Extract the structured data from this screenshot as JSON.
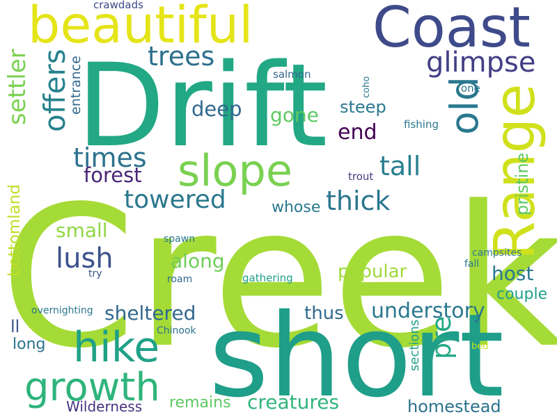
{
  "words": [
    {
      "text": "Creek",
      "color": "#a5db36"
    },
    {
      "text": "short",
      "color": "#1f9e89"
    },
    {
      "text": "Drift",
      "color": "#22a884"
    },
    {
      "text": "Coast",
      "color": "#3e4a89"
    },
    {
      "text": "beautiful",
      "color": "#e5e419"
    },
    {
      "text": "Range",
      "color": "#d0e11c"
    },
    {
      "text": "slope",
      "color": "#7ad151"
    },
    {
      "text": "hike",
      "color": "#1fa187"
    },
    {
      "text": "growth",
      "color": "#2fb47c"
    },
    {
      "text": "old",
      "color": "#2a788e"
    },
    {
      "text": "offers",
      "color": "#26828e"
    },
    {
      "text": "settler",
      "color": "#7ad151"
    },
    {
      "text": "glimpse",
      "color": "#433e85"
    },
    {
      "text": "trees",
      "color": "#2d708e"
    },
    {
      "text": "times",
      "color": "#2c728e"
    },
    {
      "text": "tall",
      "color": "#277f8e"
    },
    {
      "text": "towered",
      "color": "#2a788e"
    },
    {
      "text": "thick",
      "color": "#2a768e"
    },
    {
      "text": "lush",
      "color": "#3b528b"
    },
    {
      "text": "forest",
      "color": "#482677"
    },
    {
      "text": "deep",
      "color": "#31688e"
    },
    {
      "text": "end",
      "color": "#440154"
    },
    {
      "text": "gone",
      "color": "#5ec962"
    },
    {
      "text": "steep",
      "color": "#2a788e"
    },
    {
      "text": "pristine",
      "color": "#5ec962"
    },
    {
      "text": "pre",
      "color": "#22a884"
    },
    {
      "text": "sheltered",
      "color": "#31688e"
    },
    {
      "text": "understory",
      "color": "#2a788e"
    },
    {
      "text": "along",
      "color": "#6ece58"
    },
    {
      "text": "small",
      "color": "#90d743"
    },
    {
      "text": "host",
      "color": "#2a788e"
    },
    {
      "text": "bottomland",
      "color": "#bddf26"
    },
    {
      "text": "popular",
      "color": "#a0da39"
    },
    {
      "text": "whose",
      "color": "#2a788e"
    },
    {
      "text": "thus",
      "color": "#31688e"
    },
    {
      "text": "couple",
      "color": "#1f9e89"
    },
    {
      "text": "creatures",
      "color": "#2fb47c"
    },
    {
      "text": "homestead",
      "color": "#2c728e"
    },
    {
      "text": "remains",
      "color": "#5ec962"
    },
    {
      "text": "long",
      "color": "#2c728e"
    },
    {
      "text": "ll",
      "color": "#3b528b"
    },
    {
      "text": "Wilderness",
      "color": "#46327e"
    },
    {
      "text": "sections",
      "color": "#1fa187"
    },
    {
      "text": "entrance",
      "color": "#31688e"
    },
    {
      "text": "crawdads",
      "color": "#3e4a89"
    },
    {
      "text": "salmon",
      "color": "#31688e"
    },
    {
      "text": "coho",
      "color": "#2a788e"
    },
    {
      "text": "one",
      "color": "#2c728e"
    },
    {
      "text": "fishing",
      "color": "#2a788e"
    },
    {
      "text": "trout",
      "color": "#433e85"
    },
    {
      "text": "spawn",
      "color": "#2a788e"
    },
    {
      "text": "campsites",
      "color": "#2a788e"
    },
    {
      "text": "fall",
      "color": "#2a788e"
    },
    {
      "text": "try",
      "color": "#3b528b"
    },
    {
      "text": "roam",
      "color": "#31688e"
    },
    {
      "text": "gathering",
      "color": "#1f9e89"
    },
    {
      "text": "overnighting",
      "color": "#2a788e"
    },
    {
      "text": "Chinook",
      "color": "#2c728e"
    },
    {
      "text": "bed",
      "color": "#c8e020"
    }
  ]
}
